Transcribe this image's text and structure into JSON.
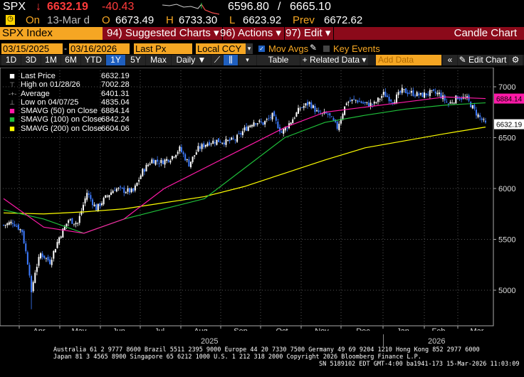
{
  "quote": {
    "ticker": "SPX",
    "arrow": "↓",
    "last": "6632.19",
    "change": "-40.43",
    "bid": "6596.80",
    "sep": "/",
    "ask": "6665.10",
    "on_label": "On",
    "date": "13-Mar d",
    "o_label": "O",
    "open": "6673.49",
    "h_label": "H",
    "high": "6733.30",
    "l_label": "L",
    "low": "6623.92",
    "prev_label": "Prev",
    "prev": "6672.62"
  },
  "menubar": {
    "security": "SPX Index",
    "suggested": "94) Suggested Charts ▾",
    "actions": "96) Actions ▾",
    "edit": "97) Edit ▾",
    "chart_type": "Candle Chart"
  },
  "controls": {
    "start_date": "03/15/2025",
    "dash": "-",
    "end_date": "03/16/2026",
    "field": "Last Px",
    "currency": "Local CCY",
    "mov_avgs": "Mov Avgs",
    "key_events": "Key Events"
  },
  "toolbar": {
    "periods": [
      "1D",
      "3D",
      "1M",
      "6M",
      "YTD",
      "1Y",
      "5Y",
      "Max"
    ],
    "selected_period": "1Y",
    "frequency": "Daily ▼",
    "table": "Table",
    "related": "+ Related Data ▾",
    "add_data_placeholder": "Add Data",
    "collapse": "«",
    "edit_chart": "✎ Edit Chart",
    "settings": "⚙"
  },
  "legend": [
    {
      "label": "Last Price",
      "value": "6632.19",
      "color": "#ffffff"
    },
    {
      "label": "High on 01/28/26",
      "value": "7002.28"
    },
    {
      "label": "Average",
      "value": "6401.31"
    },
    {
      "label": "Low on 04/07/25",
      "value": "4835.04"
    },
    {
      "label": "SMAVG (50)  on Close",
      "value": "6884.14",
      "color": "#ff1aa8"
    },
    {
      "label": "SMAVG (100)  on Close",
      "value": "6842.24",
      "color": "#1fbf3a"
    },
    {
      "label": "SMAVG (200)  on Close",
      "value": "6604.06",
      "color": "#ffff00"
    }
  ],
  "chart_data": {
    "type": "candlestick",
    "y_ticks": [
      5000,
      5500,
      6000,
      6500,
      7000
    ],
    "ylim": [
      4700,
      7150
    ],
    "x_ticks": [
      "Apr",
      "May",
      "Jun",
      "Jul",
      "Aug",
      "Sep",
      "Oct",
      "Nov",
      "Dec",
      "Jan",
      "Feb",
      "Mar"
    ],
    "years": [
      "2025",
      "2026"
    ],
    "weekly_close_approx": [
      5640,
      5670,
      5580,
      5070,
      5360,
      5280,
      5520,
      5690,
      5660,
      5960,
      5800,
      5910,
      6000,
      5980,
      5970,
      6170,
      6280,
      6260,
      6300,
      6390,
      6240,
      6390,
      6450,
      6470,
      6460,
      6480,
      6580,
      6660,
      6640,
      6715,
      6550,
      6660,
      6790,
      6840,
      6730,
      6730,
      6600,
      6850,
      6870,
      6830,
      6830,
      6930,
      6860,
      6960,
      6940,
      6915,
      6940,
      6930,
      6830,
      6900,
      6880,
      6740,
      6632
    ],
    "sma50_monthly": [
      5900,
      5620,
      5560,
      5700,
      6000,
      6200,
      6400,
      6600,
      6750,
      6800,
      6850,
      6900,
      6884.14
    ],
    "sma100_monthly": [
      5790,
      5700,
      5560,
      5700,
      5800,
      5900,
      6200,
      6500,
      6650,
      6720,
      6780,
      6820,
      6842.24
    ],
    "sma200_monthly": [
      5760,
      5750,
      5770,
      5800,
      5860,
      5920,
      6020,
      6150,
      6280,
      6400,
      6470,
      6540,
      6604.06
    ],
    "badges": [
      {
        "value": "6884.14",
        "color": "#ff1aa8"
      },
      {
        "value": "6632.19",
        "color": "#ffffff"
      }
    ],
    "grid": true
  },
  "footer": {
    "line1": "Australia 61 2 9777 8600 Brazil 5511 2395 9000 Europe 44 20 7330 7500 Germany 49 69 9204 1210 Hong Kong 852 2977 6000",
    "line2": "Japan 81 3 4565 8900       Singapore 65 6212 1000       U.S. 1 212 318 2000        Copyright 2026 Bloomberg Finance L.P.",
    "line3": "SN 5189102 EDT  GMT-4:00 ba1941-173 15-Mar-2026 11:03:09"
  }
}
